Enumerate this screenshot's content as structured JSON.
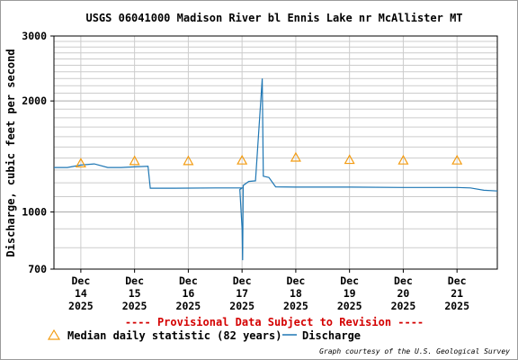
{
  "chart_data": {
    "type": "line",
    "title": "USGS 06041000 Madison River bl Ennis Lake nr McAllister MT",
    "ylabel": "Discharge, cubic feet per second",
    "xlabel": "",
    "yscale": "log",
    "ylim": [
      700,
      3000
    ],
    "y_tick_labels": [
      "3000",
      "2000",
      "1000",
      "700"
    ],
    "x_ticks": [
      {
        "day": "Dec",
        "num": "14",
        "year": "2025"
      },
      {
        "day": "Dec",
        "num": "15",
        "year": "2025"
      },
      {
        "day": "Dec",
        "num": "16",
        "year": "2025"
      },
      {
        "day": "Dec",
        "num": "17",
        "year": "2025"
      },
      {
        "day": "Dec",
        "num": "18",
        "year": "2025"
      },
      {
        "day": "Dec",
        "num": "19",
        "year": "2025"
      },
      {
        "day": "Dec",
        "num": "20",
        "year": "2025"
      },
      {
        "day": "Dec",
        "num": "21",
        "year": "2025"
      }
    ],
    "xlim": [
      "2025-12-13 12:00",
      "2025-12-21 18:00"
    ],
    "grid": true,
    "series": [
      {
        "name": "Discharge",
        "color": "#1f77b4",
        "points": [
          [
            "2025-12-13 12:00",
            1320
          ],
          [
            "2025-12-13 18:00",
            1320
          ],
          [
            "2025-12-14 00:00",
            1340
          ],
          [
            "2025-12-14 06:00",
            1350
          ],
          [
            "2025-12-14 12:00",
            1320
          ],
          [
            "2025-12-14 18:00",
            1320
          ],
          [
            "2025-12-15 00:00",
            1325
          ],
          [
            "2025-12-15 06:00",
            1330
          ],
          [
            "2025-12-15 07:00",
            1160
          ],
          [
            "2025-12-15 18:00",
            1160
          ],
          [
            "2025-12-16 12:00",
            1162
          ],
          [
            "2025-12-17 00:00",
            1162
          ],
          [
            "2025-12-16 23:00",
            1150
          ],
          [
            "2025-12-17 00:00",
            900
          ],
          [
            "2025-12-17 00:15",
            740
          ],
          [
            "2025-12-17 00:30",
            1180
          ],
          [
            "2025-12-17 03:00",
            1210
          ],
          [
            "2025-12-17 06:00",
            1215
          ],
          [
            "2025-12-17 09:00",
            2300
          ],
          [
            "2025-12-17 09:30",
            1250
          ],
          [
            "2025-12-17 12:00",
            1240
          ],
          [
            "2025-12-17 15:00",
            1170
          ],
          [
            "2025-12-18 00:00",
            1168
          ],
          [
            "2025-12-19 00:00",
            1168
          ],
          [
            "2025-12-20 00:00",
            1165
          ],
          [
            "2025-12-21 00:00",
            1165
          ],
          [
            "2025-12-21 06:00",
            1162
          ],
          [
            "2025-12-21 12:00",
            1145
          ],
          [
            "2025-12-21 18:00",
            1140
          ]
        ]
      },
      {
        "name": "Median daily statistic (82 years)",
        "marker": "triangle",
        "color": "#ff9900",
        "points": [
          [
            "2025-12-14 00:00",
            1355
          ],
          [
            "2025-12-15 00:00",
            1375
          ],
          [
            "2025-12-16 00:00",
            1375
          ],
          [
            "2025-12-17 00:00",
            1380
          ],
          [
            "2025-12-18 00:00",
            1405
          ],
          [
            "2025-12-19 00:00",
            1385
          ],
          [
            "2025-12-20 00:00",
            1380
          ],
          [
            "2025-12-21 00:00",
            1380
          ]
        ]
      }
    ]
  },
  "provisional_text": "---- Provisional Data Subject to Revision ----",
  "legend": {
    "median_label": "Median daily statistic (82 years)",
    "discharge_label": "Discharge"
  },
  "credit": "Graph courtesy of the U.S. Geological Survey"
}
